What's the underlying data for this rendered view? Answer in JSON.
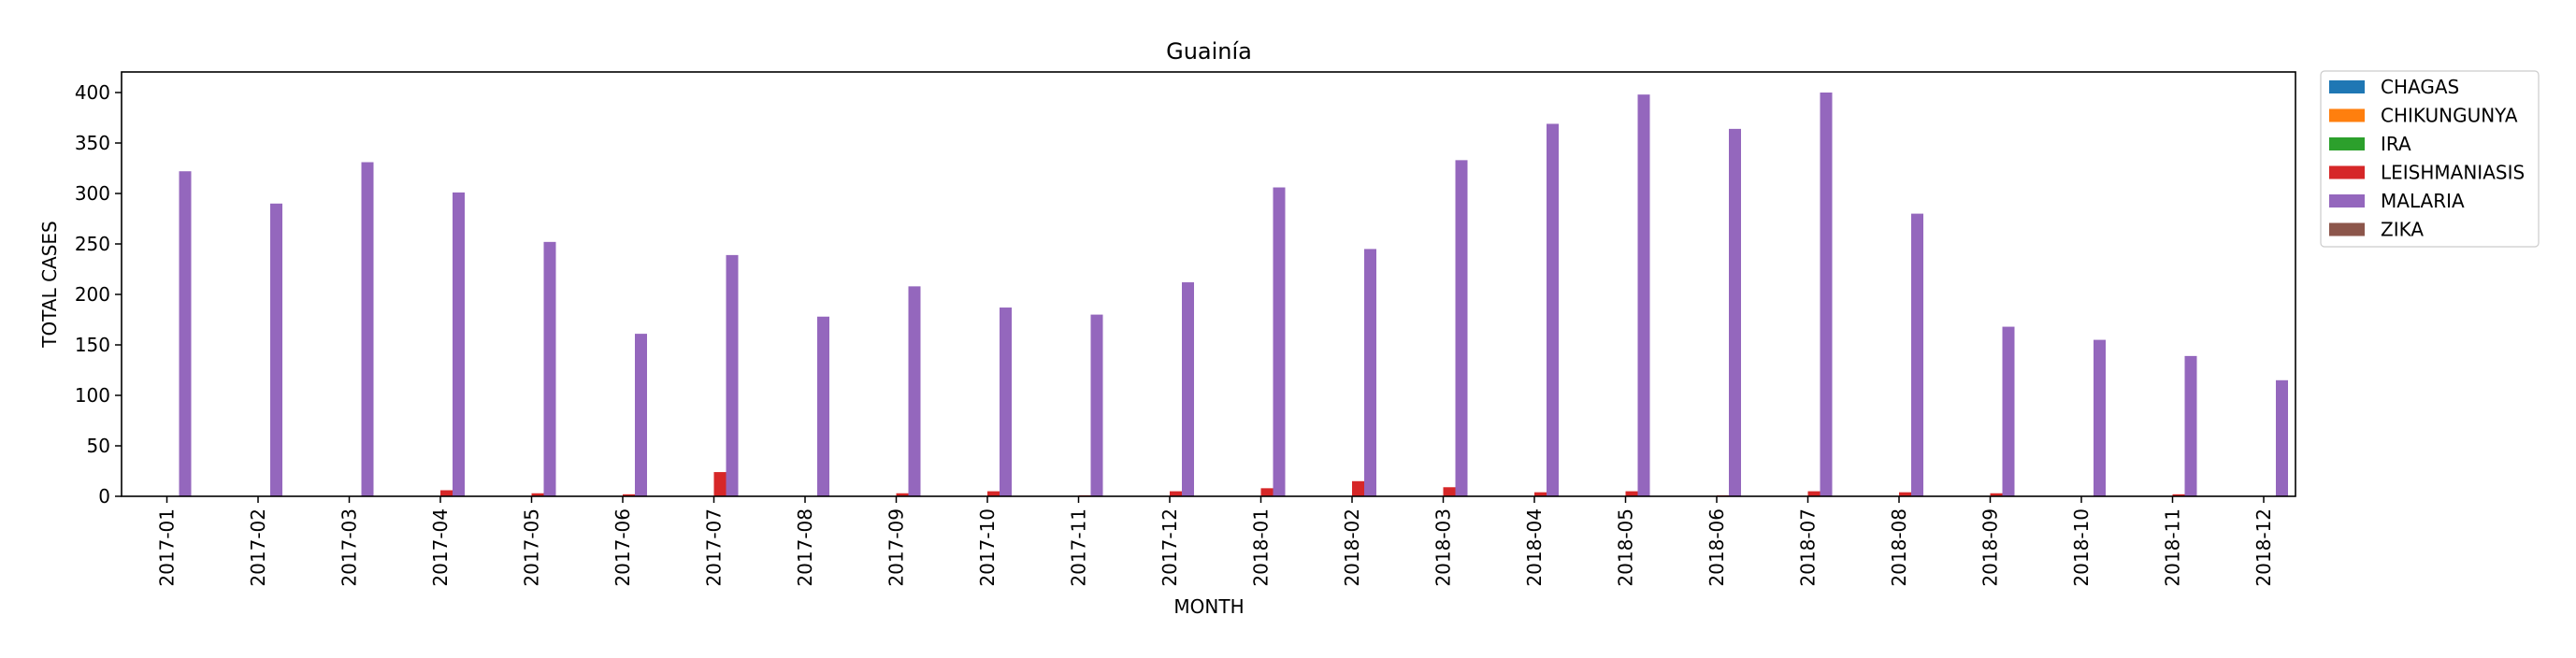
{
  "chart_data": {
    "type": "bar",
    "title": "Guainía",
    "xlabel": "MONTH",
    "ylabel": "TOTAL CASES",
    "ylim": [
      0,
      420
    ],
    "yticks": [
      0,
      50,
      100,
      150,
      200,
      250,
      300,
      350,
      400
    ],
    "grid": false,
    "legend_position": "outside-top-right",
    "categories": [
      "2017-01",
      "2017-02",
      "2017-03",
      "2017-04",
      "2017-05",
      "2017-06",
      "2017-07",
      "2017-08",
      "2017-09",
      "2017-10",
      "2017-11",
      "2017-12",
      "2018-01",
      "2018-02",
      "2018-03",
      "2018-04",
      "2018-05",
      "2018-06",
      "2018-07",
      "2018-08",
      "2018-09",
      "2018-10",
      "2018-11",
      "2018-12"
    ],
    "series": [
      {
        "name": "CHAGAS",
        "color": "#1f77b4",
        "values": [
          0,
          0,
          0,
          0,
          0,
          0,
          0,
          0,
          0,
          0,
          0,
          0,
          0,
          0,
          0,
          0,
          0,
          0,
          0,
          0,
          0,
          0,
          0,
          0
        ]
      },
      {
        "name": "CHIKUNGUNYA",
        "color": "#ff7f0e",
        "values": [
          0,
          0,
          0,
          0,
          0,
          0,
          0,
          0,
          0,
          0,
          0,
          0,
          0,
          0,
          0,
          0,
          0,
          0,
          0,
          0,
          0,
          0,
          0,
          0
        ]
      },
      {
        "name": "IRA",
        "color": "#2ca02c",
        "values": [
          0,
          0,
          0,
          0,
          0,
          0,
          0,
          0,
          0,
          0,
          0,
          0,
          0,
          0,
          0,
          0,
          0,
          0,
          0,
          0,
          0,
          0,
          0,
          0
        ]
      },
      {
        "name": "LEISHMANIASIS",
        "color": "#d62728",
        "values": [
          0,
          0,
          0,
          6,
          3,
          2,
          24,
          0,
          3,
          5,
          1,
          5,
          8,
          15,
          9,
          4,
          5,
          1,
          5,
          4,
          3,
          0,
          2,
          0
        ]
      },
      {
        "name": "MALARIA",
        "color": "#9467bd",
        "values": [
          322,
          290,
          331,
          301,
          252,
          161,
          239,
          178,
          208,
          187,
          180,
          212,
          306,
          245,
          333,
          369,
          398,
          364,
          400,
          280,
          168,
          155,
          139,
          115
        ]
      },
      {
        "name": "ZIKA",
        "color": "#8c564b",
        "values": [
          0,
          0,
          0,
          0,
          0,
          0,
          0,
          0,
          0,
          0,
          0,
          0,
          0,
          0,
          0,
          0,
          0,
          0,
          0,
          0,
          0,
          0,
          0,
          0
        ]
      }
    ]
  }
}
